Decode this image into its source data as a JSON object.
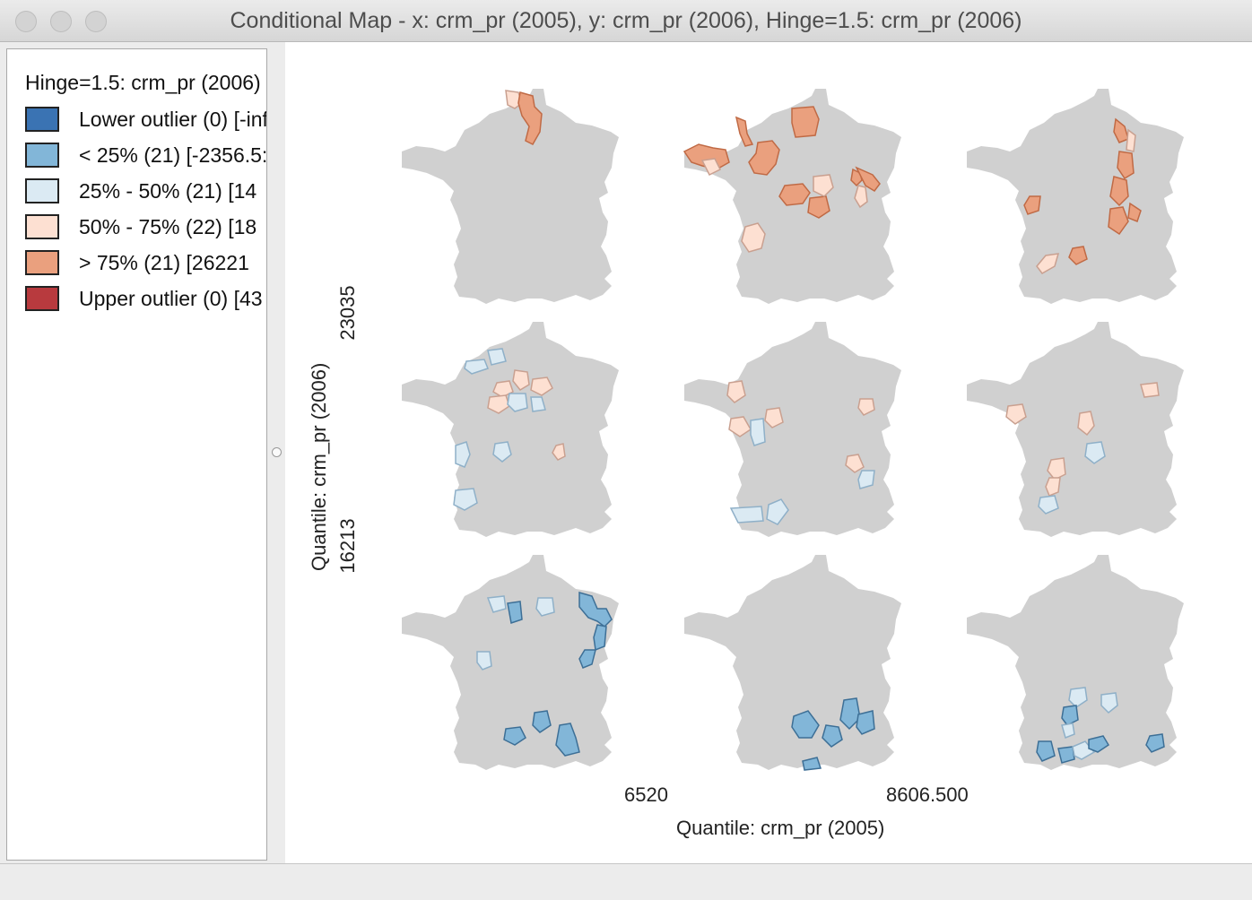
{
  "window": {
    "title": "Conditional Map - x: crm_pr (2005), y: crm_pr (2006), Hinge=1.5: crm_pr (2006)"
  },
  "legend": {
    "title": "Hinge=1.5: crm_pr (2006)",
    "items": [
      {
        "label": "Lower outlier (0)  [-inf:",
        "color": "#3a73b3"
      },
      {
        "label": "< 25% (21)  [-2356.5:",
        "color": "#82b6d8"
      },
      {
        "label": "25% - 50% (21)  [14",
        "color": "#dbeaf3"
      },
      {
        "label": "50% - 75% (22)  [18",
        "color": "#fde0d2"
      },
      {
        "label": "> 75% (21)  [26221",
        "color": "#eaa07e"
      },
      {
        "label": "Upper outlier (0)  [43",
        "color": "#b83a3e"
      }
    ]
  },
  "axes": {
    "x_title": "Quantile: crm_pr (2005)",
    "x_breaks": [
      "6520",
      "8606.500"
    ],
    "y_title": "Quantile: crm_pr (2006)",
    "y_breaks": [
      "23035",
      "16213"
    ]
  },
  "colors": {
    "base_region": "#d0d0d0",
    "titlebar": "#e0e0e0"
  }
}
